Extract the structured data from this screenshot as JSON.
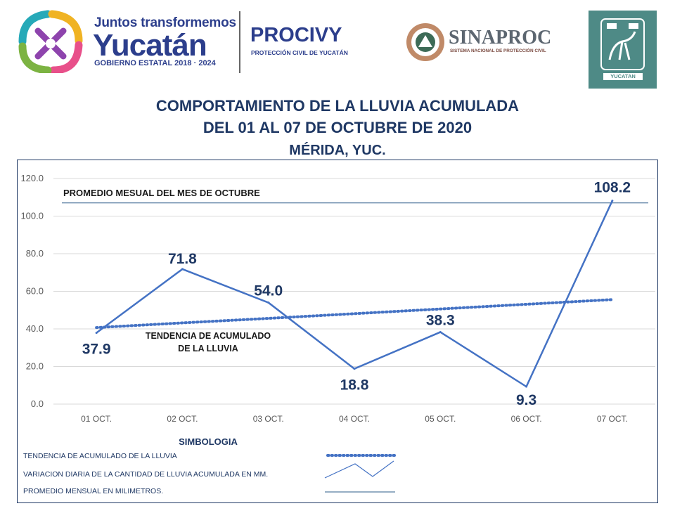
{
  "header": {
    "yucatan_logo": {
      "line1": "Juntos transformemos",
      "line2": "Yucatán",
      "line3": "GOBIERNO ESTATAL 2018 · 2024"
    },
    "procivy": {
      "name": "PROCIVY",
      "subtitle": "PROTECCIÓN CIVIL DE YUCATÁN"
    },
    "sinaproc": {
      "name": "SINAPROC",
      "subtitle": "SISTEMA NACIONAL DE PROTECCIÓN CIVIL"
    },
    "crest": {
      "caption": "YUCATAN"
    }
  },
  "titles": {
    "line1": "COMPORTAMIENTO DE LA LLUVIA ACUMULADA",
    "line2": "DEL 01 AL 07 DE OCTUBRE DE 2020",
    "line3": "MÉRIDA, YUC."
  },
  "colors": {
    "series": "#4472c4",
    "title": "#1f3864",
    "average_line": "#2e5c8a",
    "grid": "#d9d9d9"
  },
  "chart_data": {
    "type": "line",
    "title": "COMPORTAMIENTO DE LA LLUVIA ACUMULADA DEL 01 AL 07 DE OCTUBRE DE 2020 MÉRIDA, YUC.",
    "categories": [
      "01 OCT.",
      "02 OCT.",
      "03 OCT.",
      "04 OCT.",
      "05 OCT.",
      "06 OCT.",
      "07 OCT."
    ],
    "series": [
      {
        "name": "VARIACION DIARIA DE LA CANTIDAD DE LLUVIA ACUMULADA EN MM.",
        "values": [
          37.9,
          71.8,
          54.0,
          18.8,
          38.3,
          9.3,
          108.2
        ],
        "labels": [
          "37.9",
          "71.8",
          "54.0",
          "18.8",
          "38.3",
          "9.3",
          "108.2"
        ],
        "style": "solid"
      },
      {
        "name": "TENDENCIA DE ACUMULADO DE LA LLUVIA",
        "values": [
          40.7,
          43.2,
          45.6,
          48.1,
          50.6,
          53.1,
          55.6
        ],
        "style": "dotted"
      }
    ],
    "reference_line": {
      "name": "PROMEDIO MESUAL DEL MES DE OCTUBRE",
      "value": 107.0
    },
    "annotations": {
      "trend_label_line1": "TENDENCIA DE ACUMULADO",
      "trend_label_line2": "DE LA LLUVIA"
    },
    "y_ticks": [
      "0.0",
      "20.0",
      "40.0",
      "60.0",
      "80.0",
      "100.0",
      "120.0"
    ],
    "ylim": [
      0,
      120
    ],
    "grid": true,
    "xlabel": "",
    "ylabel": ""
  },
  "legend": {
    "title": "SIMBOLOGIA",
    "items": [
      {
        "label": "TENDENCIA DE ACUMULADO  DE LA LLUVIA",
        "style": "dotted"
      },
      {
        "label": "VARIACION DIARIA DE LA CANTIDAD DE LLUVIA ACUMULADA  EN MM.",
        "style": "zigzag"
      },
      {
        "label": "PROMEDIO MENSUAL  EN MILIMETROS.",
        "style": "thin"
      }
    ]
  }
}
